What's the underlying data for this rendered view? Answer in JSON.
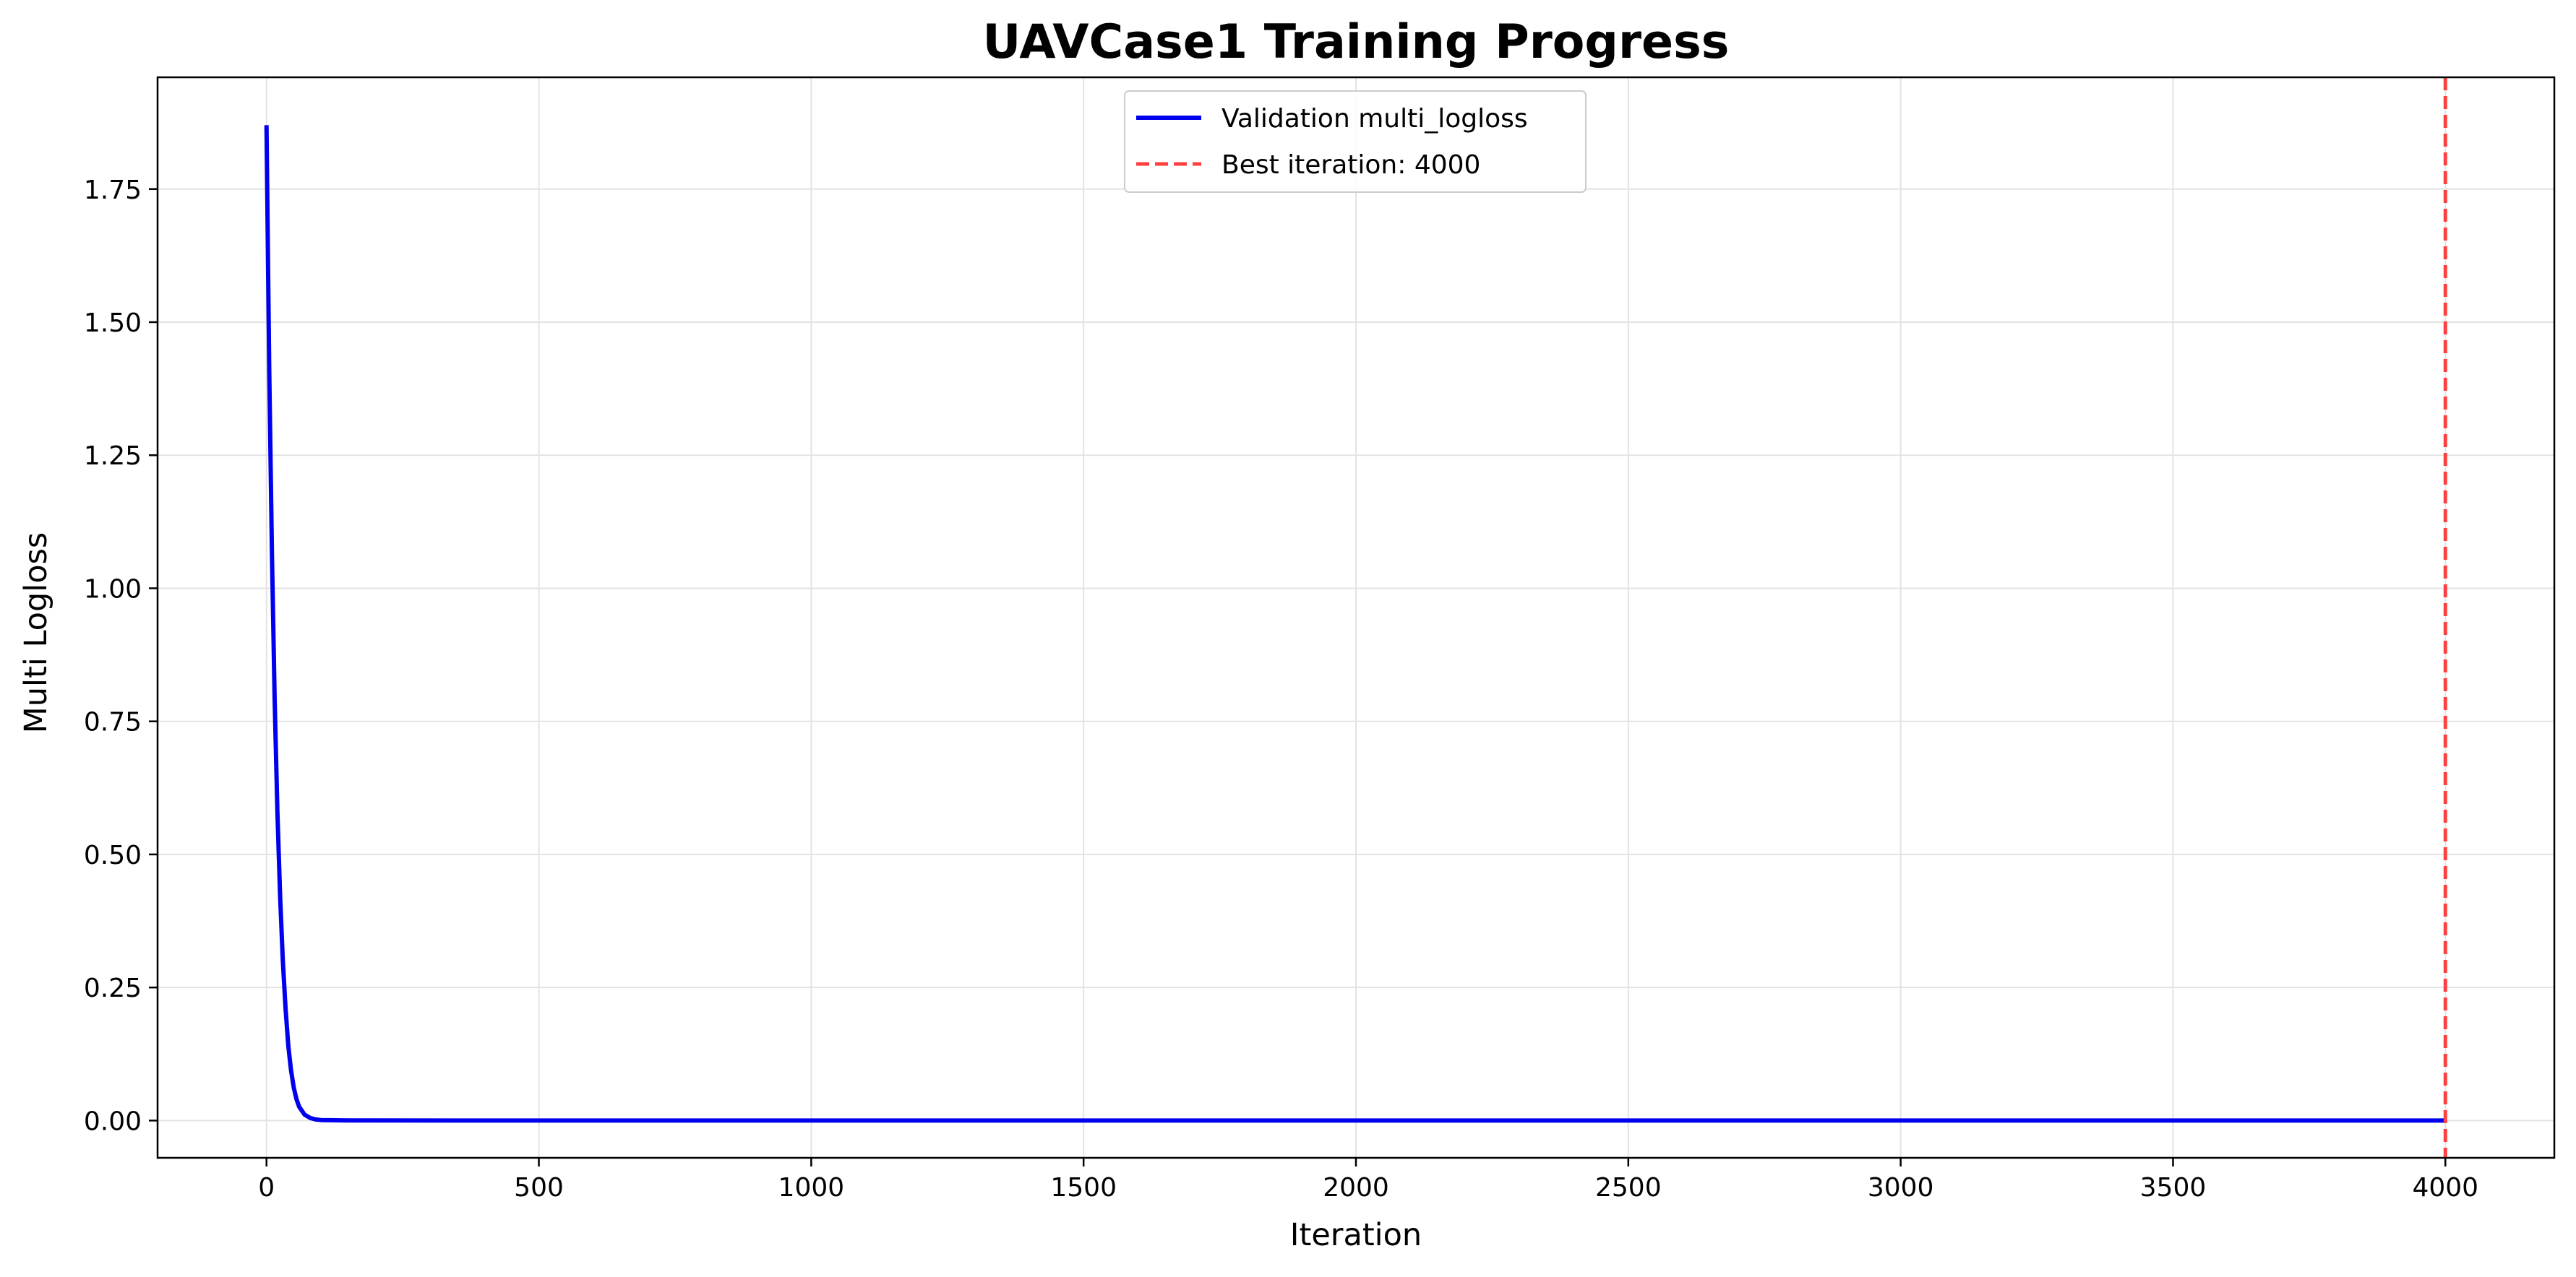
{
  "chart_data": {
    "type": "line",
    "title": "UAVCase1 Training Progress",
    "xlabel": "Iteration",
    "ylabel": "Multi Logloss",
    "xlim": [
      -200,
      4200
    ],
    "ylim": [
      -0.07,
      1.96
    ],
    "xticks": [
      0,
      500,
      1000,
      1500,
      2000,
      2500,
      3000,
      3500,
      4000
    ],
    "yticks": [
      0.0,
      0.25,
      0.5,
      0.75,
      1.0,
      1.25,
      1.5,
      1.75
    ],
    "xtick_labels": [
      "0",
      "500",
      "1000",
      "1500",
      "2000",
      "2500",
      "3000",
      "3500",
      "4000"
    ],
    "ytick_labels": [
      "0.00",
      "0.25",
      "0.50",
      "0.75",
      "1.00",
      "1.25",
      "1.50",
      "1.75"
    ],
    "grid": true,
    "legend_position": "upper-center",
    "series": [
      {
        "name": "Validation multi_logloss",
        "color": "#0000ee",
        "style": "solid",
        "x": [
          0,
          5,
          10,
          15,
          20,
          25,
          30,
          35,
          40,
          45,
          50,
          55,
          60,
          70,
          80,
          90,
          100,
          150,
          200,
          500,
          1000,
          1500,
          2000,
          2500,
          3000,
          3500,
          4000
        ],
        "y": [
          1.87,
          1.41,
          1.06,
          0.79,
          0.58,
          0.42,
          0.3,
          0.21,
          0.14,
          0.095,
          0.062,
          0.04,
          0.026,
          0.011,
          0.005,
          0.002,
          0.001,
          0.0003,
          0.0001,
          0.0,
          0.0,
          0.0,
          0.0,
          0.0,
          0.0,
          0.0,
          0.0
        ]
      }
    ],
    "reference_lines": [
      {
        "name": "Best iteration: 4000",
        "orientation": "vertical",
        "x": 4000,
        "color": "#ff4040",
        "style": "dashed"
      }
    ]
  }
}
